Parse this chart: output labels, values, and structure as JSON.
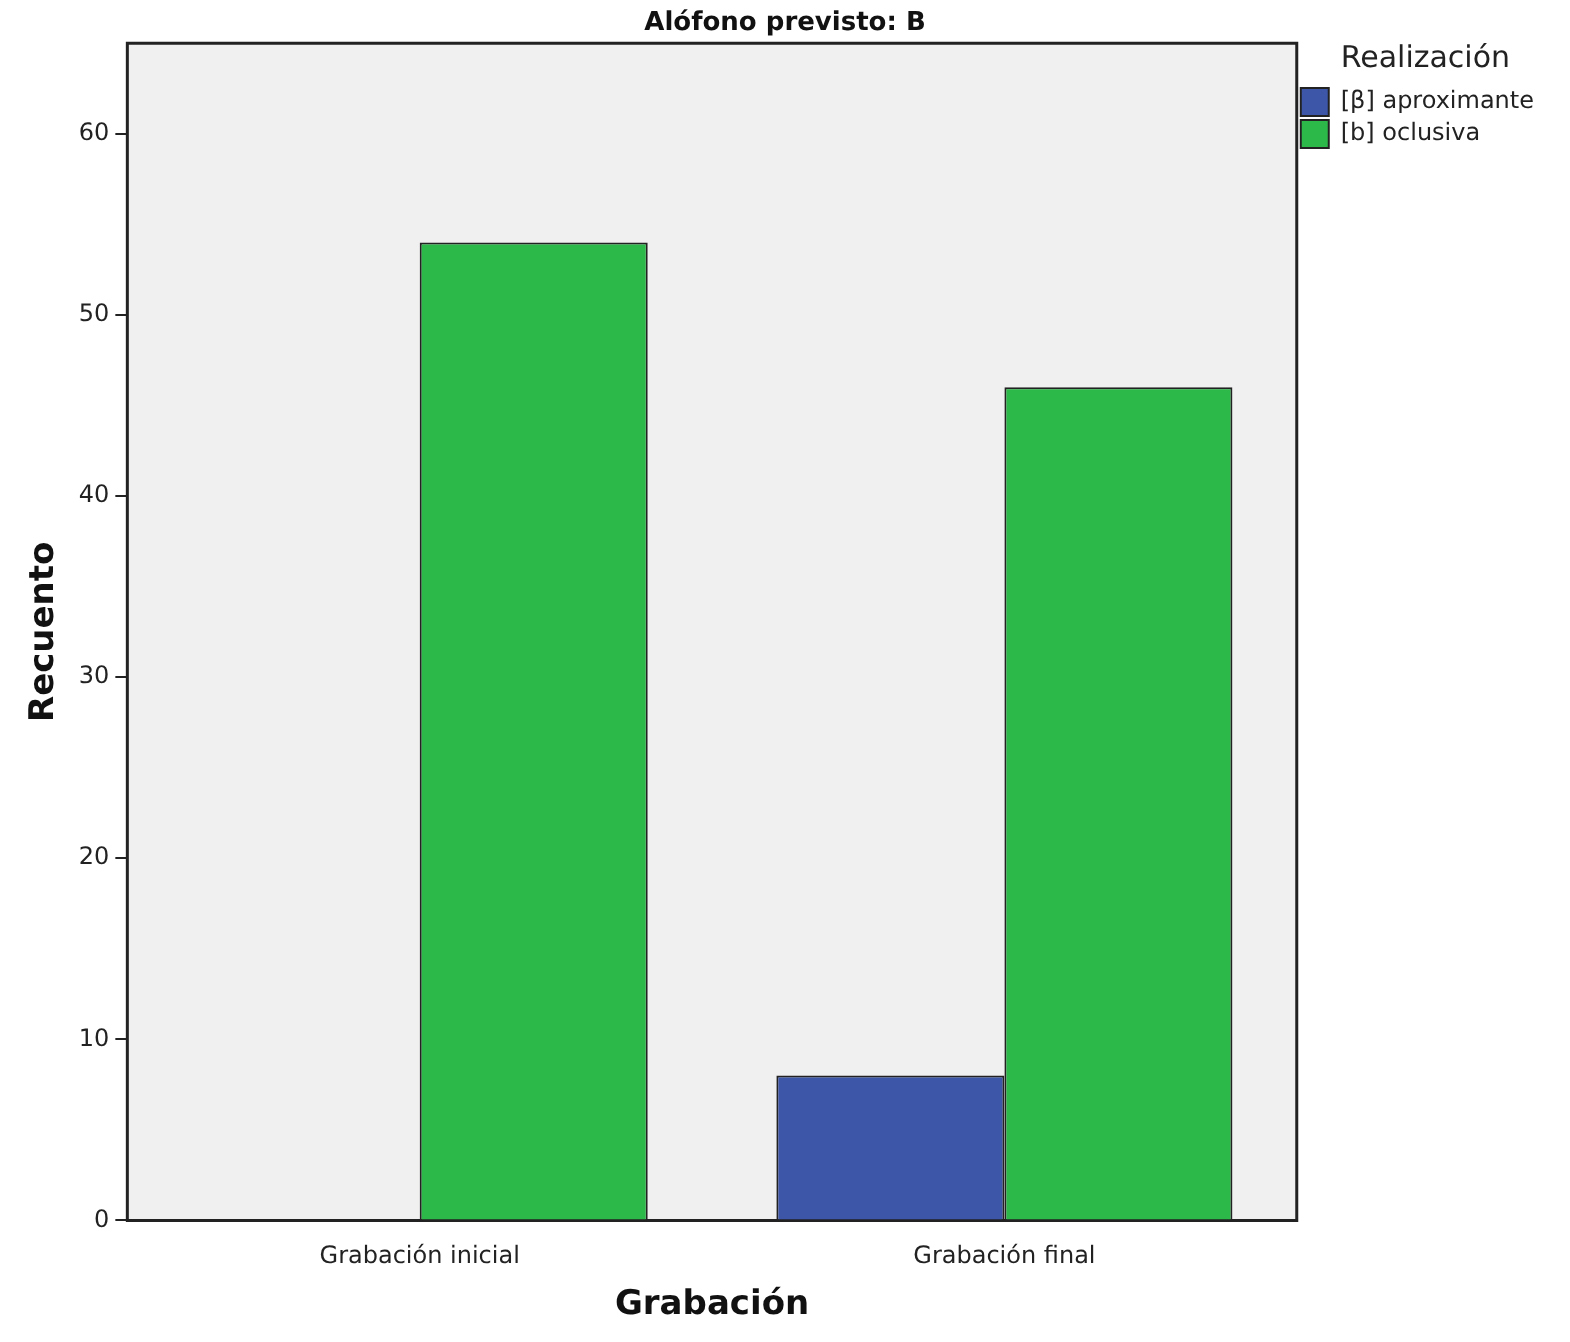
{
  "chart_data": {
    "type": "bar",
    "title": "Alófono previsto: B",
    "xlabel": "Grabación",
    "ylabel": "Recuento",
    "legend_title": "Realización",
    "categories": [
      "Grabación inicial",
      "Grabación final"
    ],
    "series": [
      {
        "name": "[β] aproximante",
        "color": "#3d56a8",
        "values": [
          0,
          8
        ]
      },
      {
        "name": "[b] oclusiva",
        "color": "#2db84a",
        "values": [
          54,
          46
        ]
      }
    ],
    "ylim": [
      0,
      65
    ],
    "yticks": [
      0,
      10,
      20,
      30,
      40,
      50,
      60
    ],
    "grid": false,
    "legend": "top right"
  }
}
